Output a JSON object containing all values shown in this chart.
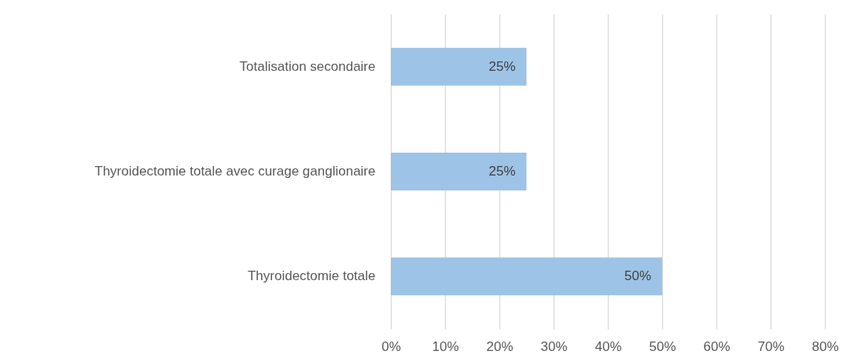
{
  "chart_data": {
    "type": "bar",
    "orientation": "horizontal",
    "categories": [
      "Totalisation secondaire",
      "Thyroidectomie totale avec curage ganglionaire",
      "Thyroidectomie totale"
    ],
    "values": [
      25,
      25,
      50
    ],
    "color": "#9dc3e6",
    "value_labels": [
      "25%",
      "25%",
      "50%"
    ],
    "xlim": [
      0,
      80
    ],
    "xticks": [
      {
        "value": 0,
        "label": "0%"
      },
      {
        "value": 10,
        "label": "10%"
      },
      {
        "value": 20,
        "label": "20%"
      },
      {
        "value": 30,
        "label": "30%"
      },
      {
        "value": 40,
        "label": "40%"
      },
      {
        "value": 50,
        "label": "50%"
      },
      {
        "value": 60,
        "label": "60%"
      },
      {
        "value": 70,
        "label": "70%"
      },
      {
        "value": 80,
        "label": "80%"
      }
    ],
    "grid": "x"
  }
}
